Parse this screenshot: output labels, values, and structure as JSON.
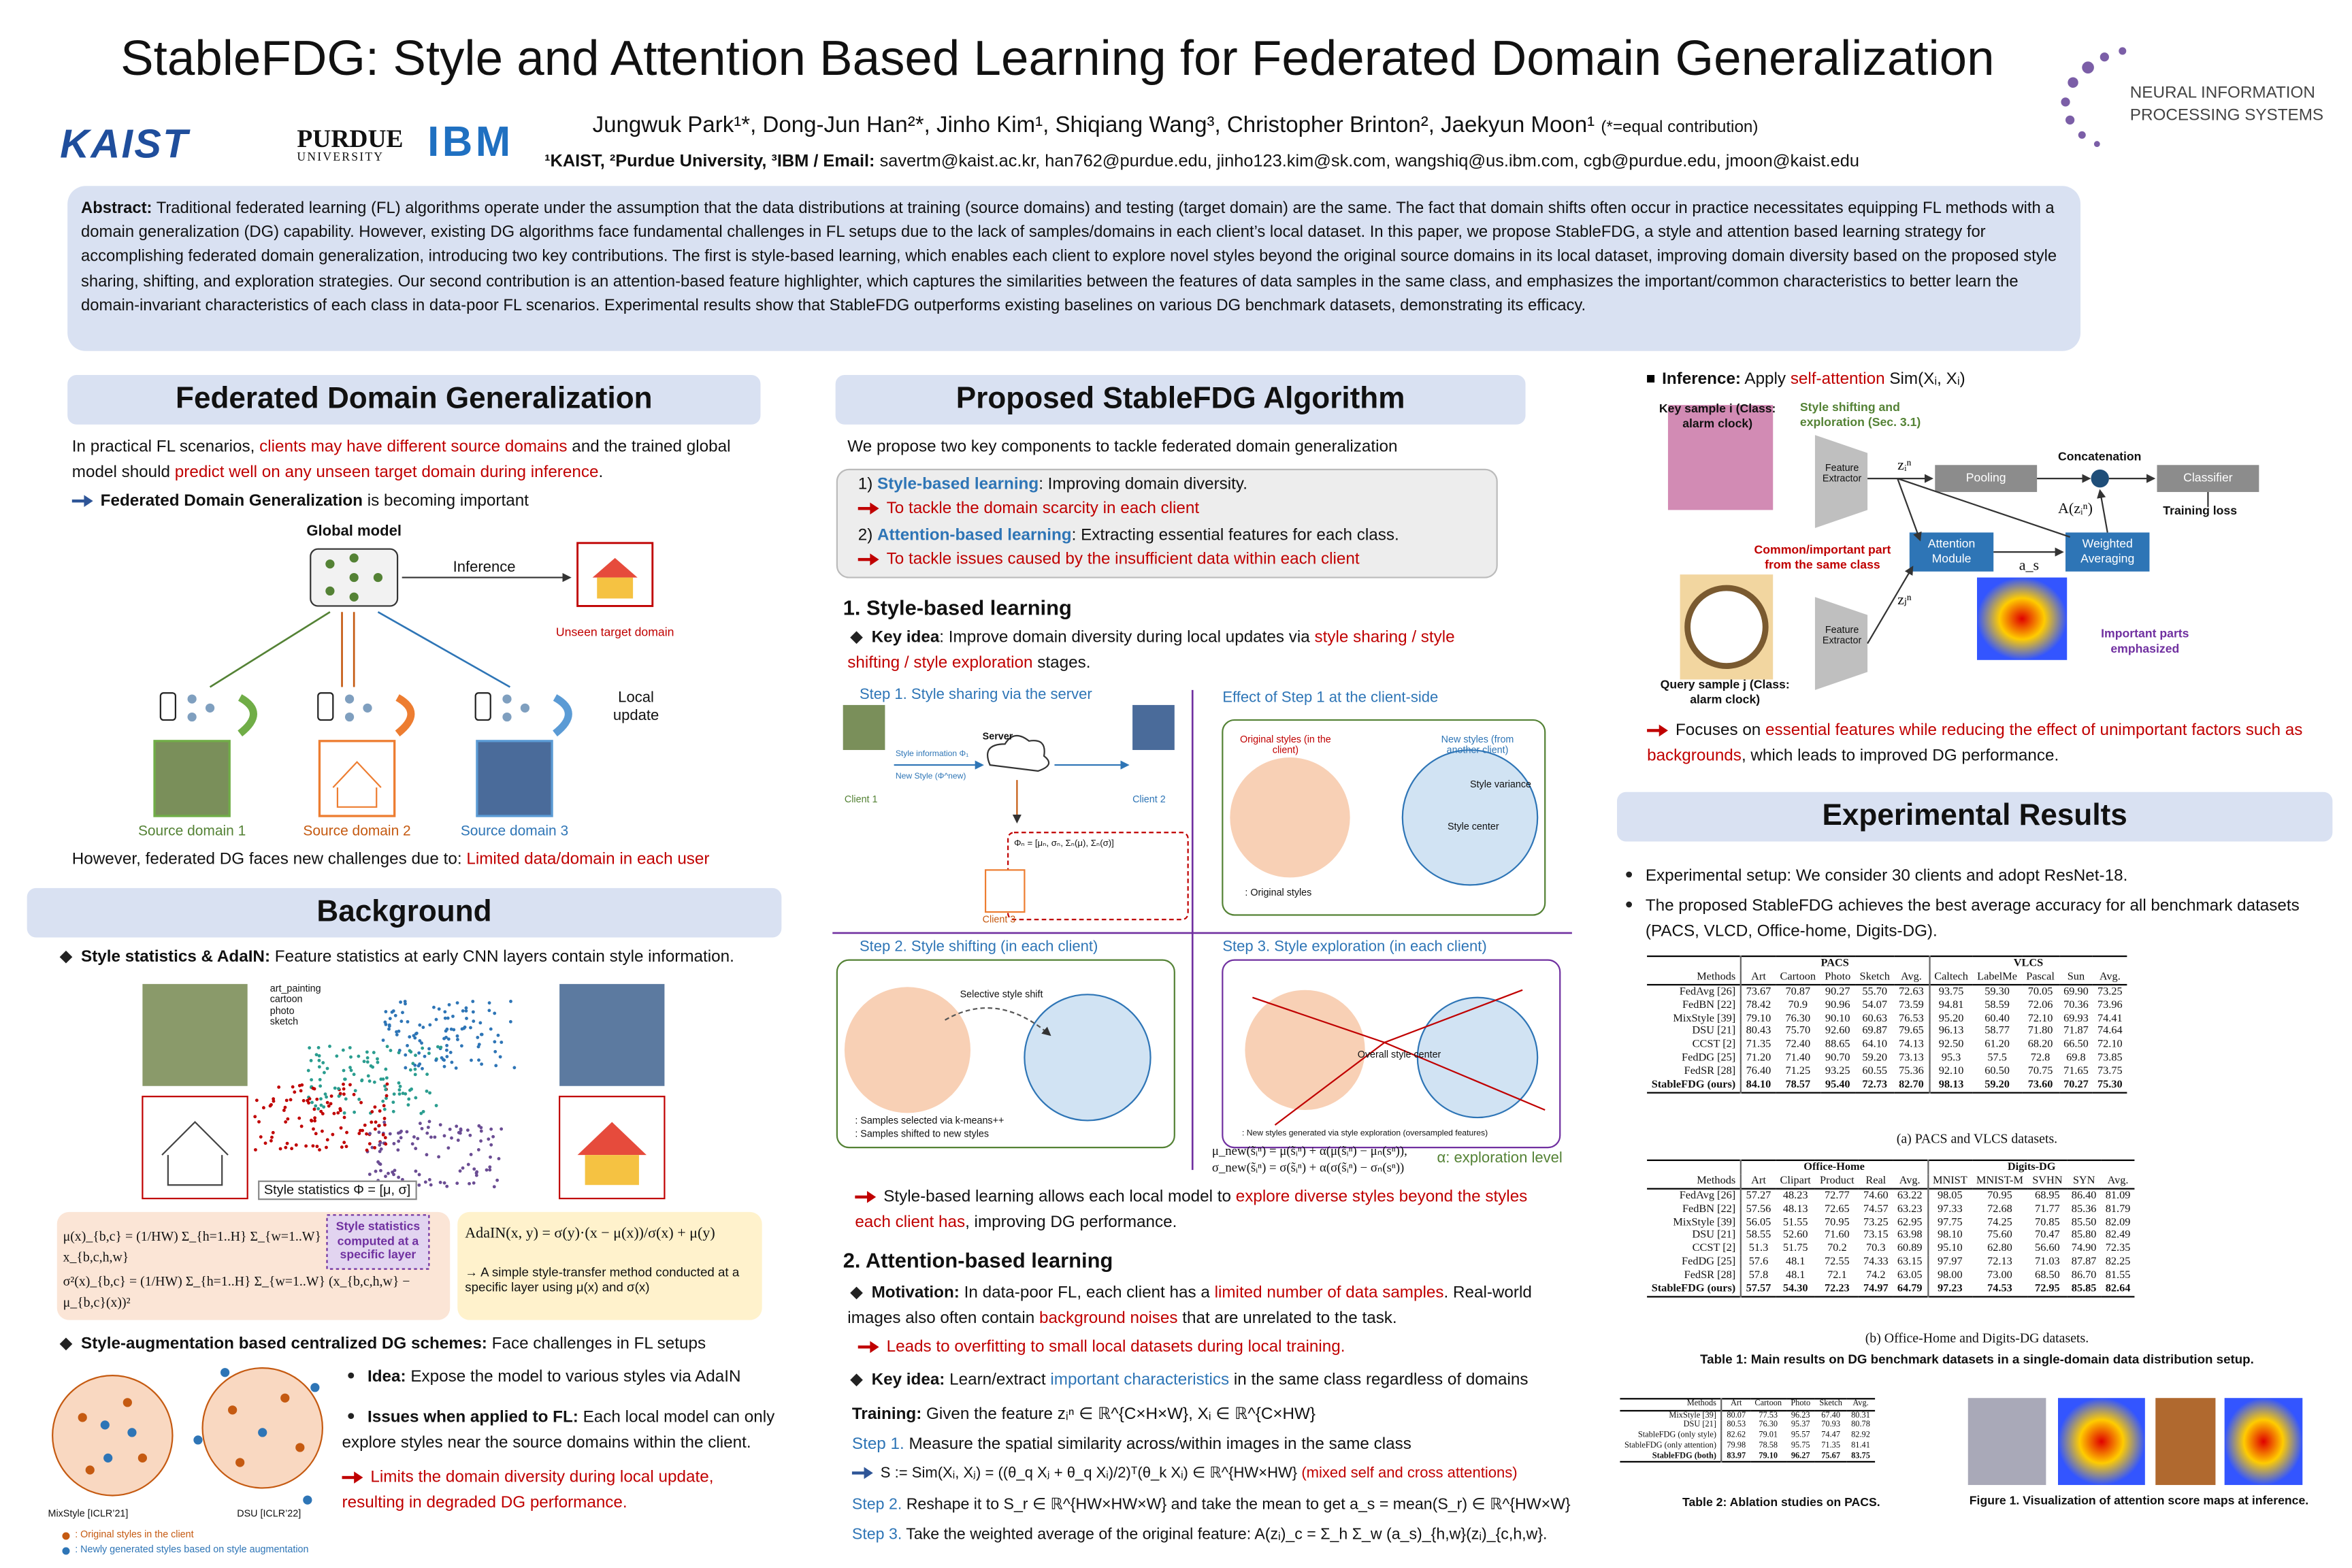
{
  "header": {
    "title": "StableFDG: Style and Attention Based Learning for Federated Domain Generalization",
    "authors": "Jungwuk Park¹*, Dong-Jun Han²*, Jinho Kim¹, Shiqiang Wang³, Christopher Brinton², Jaekyun Moon¹",
    "equal_note": "(*=equal contribution)",
    "affiliations": "¹KAIST, ²Purdue University, ³IBM / Email:",
    "emails": "savertm@kaist.ac.kr, han762@purdue.edu, jinho123.kim@sk.com, wangshiq@us.ibm.com, cgb@purdue.edu, jmoon@kaist.edu",
    "logos": [
      "KAIST",
      "PURDUE",
      "UNIVERSITY",
      "IBM",
      "NEURAL INFORMATION",
      "PROCESSING SYSTEMS"
    ]
  },
  "abstract": {
    "label": "Abstract:",
    "text": "Traditional federated learning (FL) algorithms operate under the assumption that the data distributions at training (source domains) and testing (target domain) are the same. The fact that domain shifts often occur in practice necessitates equipping FL methods with a domain generalization (DG) capability. However, existing DG algorithms face fundamental challenges in FL setups due to the lack of samples/domains in each client’s local dataset. In this paper, we propose StableFDG, a style and attention based learning strategy for accomplishing federated domain generalization, introducing two key contributions. The first is style-based learning, which enables each client to explore novel styles beyond the original source domains in its local dataset, improving domain diversity based on the proposed style sharing, shifting, and exploration strategies. Our second contribution is an attention-based feature highlighter, which captures the similarities between the features of data samples in the same class, and emphasizes the important/common characteristics to better learn the domain-invariant characteristics of each class in data-poor FL scenarios. Experimental results show that StableFDG outperforms existing baselines on various DG benchmark datasets, demonstrating its efficacy."
  },
  "fdg": {
    "heading": "Federated Domain Generalization",
    "intro": [
      "In practical FL scenarios, ",
      "clients may have different source domains",
      " and the trained global model should ",
      "predict well on any unseen target domain during inference",
      "."
    ],
    "point": [
      "Federated Domain Generalization",
      " is becoming important"
    ],
    "diagram": {
      "global_model": "Global model",
      "inference": "Inference",
      "unseen": "Unseen target domain",
      "local_update": "Local update",
      "sources": [
        "Source domain 1",
        "Source domain 2",
        "Source domain 3"
      ]
    },
    "challenge": [
      "However, federated DG faces new challenges due to: ",
      "Limited data/domain in each user"
    ]
  },
  "background": {
    "heading": "Background",
    "stats": [
      "Style statistics & AdaIN:",
      " Feature statistics at early CNN layers contain style information."
    ],
    "tsne_legend": [
      "art_painting",
      "cartoon",
      "photo",
      "sketch"
    ],
    "tsne_label": "Style statistics Φ = [μ, σ]",
    "mean_formula": "μ(x)_{b,c} = (1/HW) Σ_{h=1..H} Σ_{w=1..W} x_{b,c,h,w}",
    "var_formula": "σ²(x)_{b,c} = (1/HW) Σ_{h=1..H} Σ_{w=1..W} (x_{b,c,h,w} − μ_{b,c}(x))²",
    "stats_note": "Style statistics computed at a specific layer",
    "adain_formula": "AdaIN(x, y) = σ(y)·(x − μ(x))/σ(x) + μ(y)",
    "adain_note": "→ A simple style-transfer method conducted at a specific layer using μ(x) and σ(x)",
    "aug": [
      "Style-augmentation based centralized DG schemes:",
      " Face challenges in FL setups"
    ],
    "methods": [
      "MixStyle [ICLR’21]",
      "DSU [ICLR’22]"
    ],
    "legend": [
      ": Original styles in the client",
      ": Newly generated styles based on style augmentation"
    ],
    "idea": [
      "Idea:",
      " Expose the model to various styles via AdaIN"
    ],
    "issues": [
      "Issues when applied to FL:",
      " Each local model can only explore styles near the source domains within the client."
    ],
    "limit": "Limits the domain diversity during local update, resulting in degraded DG performance."
  },
  "algorithm": {
    "heading": "Proposed StableFDG Algorithm",
    "intro": "We propose two key components to tackle federated domain generalization",
    "c1": [
      "1) ",
      "Style-based learning",
      ": Improving domain diversity."
    ],
    "c1_goal": "To tackle the domain scarcity in each client",
    "c2": [
      "2) ",
      "Attention-based learning",
      ": Extracting essential features for each class."
    ],
    "c2_goal": "To tackle issues caused by the insufficient data within each client",
    "s1_heading": "1. Style-based learning",
    "s1_key": [
      "Key idea",
      ": Improve domain diversity during local updates via ",
      "style sharing / style shifting / style exploration",
      " stages."
    ],
    "fig": {
      "step1": "Step 1. Style sharing via the server",
      "effect": "Effect of Step 1 at the client-side",
      "step2": "Step 2. Style shifting (in each client)",
      "step3": "Step 3. Style exploration (in each client)",
      "server": "Server",
      "clients": [
        "Client 1",
        "Client 2",
        "Client 3"
      ],
      "style_info": "Style information Φ₁",
      "new_style": "New Style (Φ^new)",
      "phi": "Φₙ = [μₙ, σₙ, Σₙ(μ), Σₙ(σ)]",
      "orig": "Original styles (in the client)",
      "newst": "New styles (from another client)",
      "center": "Style center",
      "variance": "Style variance",
      "shift": "Selective style shift",
      "overall": "Overall style center",
      "orig_legend": ": Original styles",
      "kmeans": ": Samples selected via k-means++",
      "shifted": ": Samples shifted to new styles",
      "explored": ": New styles generated via style exploration (oversampled features)",
      "mu_new": "μ_new(s̃ᵢⁿ) = μ(s̃ᵢⁿ) + α(μ(s̃ᵢⁿ) − μₙ(sⁿ)),",
      "sigma_new": "σ_new(s̃ᵢⁿ) = σ(s̃ᵢⁿ) + α(σ(s̃ᵢⁿ) − σₙ(sⁿ))",
      "alpha": "α: exploration level"
    },
    "s1_result": [
      "Style-based learning allows each local model to ",
      "explore diverse styles beyond the styles each client has",
      ", improving DG performance."
    ],
    "s2_heading": "2. Attention-based learning",
    "motivation": [
      "Motivation:",
      " In data-poor FL, each client has a ",
      "limited number of data samples",
      ". Real-world images also often contain ",
      "background noises",
      " that are unrelated to the task."
    ],
    "overfit": "Leads to overfitting to small local datasets during local training.",
    "s2_key": [
      "Key idea:",
      " Learn/extract ",
      "important characteristics",
      " in the same class regardless of domains"
    ],
    "training": [
      "Training:",
      " Given the feature zᵢⁿ ∈ ℝ^{C×H×W}, Xᵢ ∈ ℝ^{C×HW}"
    ],
    "step1": [
      "Step 1.",
      " Measure the spatial similarity across/within images in the same class"
    ],
    "sim": [
      "S := Sim(Xᵢ, Xⱼ) = ((θ_q Xⱼ + θ_q Xᵢ)/2)ᵀ(θ_k Xᵢ) ∈ ℝ^{HW×HW}",
      "(mixed self and cross attentions)"
    ],
    "step2": [
      "Step 2.",
      " Reshape it to S_r ∈ ℝ^{HW×HW×W} and take the mean to get a_s = mean(S_r) ∈ ℝ^{HW×W}"
    ],
    "step3": [
      "Step 3.",
      " Take the weighted average of the original feature: A(zᵢ)_c = Σ_h Σ_w (a_s)_{h,w}(zᵢ)_{c,h,w}."
    ]
  },
  "inference": {
    "title": [
      "Inference:",
      " Apply ",
      "self-attention",
      " Sim(Xᵢ, Xᵢ)"
    ],
    "key": "Key sample i (Class: alarm clock)",
    "shift": "Style shifting and exploration (Sec. 3.1)",
    "extractor": "Feature Extractor",
    "pooling": "Pooling",
    "concat": "Concatenation",
    "classifier": "Classifier",
    "loss": "Training loss",
    "attention": "Attention Module",
    "weighted": "Weighted Averaging",
    "common": "Common/important part from the same class",
    "query": "Query sample j (Class: alarm clock)",
    "important": "Important parts emphasized",
    "zi": "zᵢⁿ",
    "zj": "zⱼⁿ",
    "az": "A(zᵢⁿ)",
    "as": "a_s",
    "focus": [
      "Focuses on ",
      "essential features while reducing the effect of unimportant factors such as backgrounds",
      ", which leads to improved DG performance."
    ]
  },
  "results": {
    "heading": "Experimental Results",
    "bullets": [
      "Experimental setup: We consider 30 clients and adopt ResNet-18.",
      "The proposed StableFDG achieves the best average accuracy for all benchmark datasets (PACS, VLCD, Office-home, Digits-DG)."
    ],
    "table1a": {
      "groups": [
        "PACS",
        "VLCS"
      ],
      "columns": [
        "Methods",
        "Art",
        "Cartoon",
        "Photo",
        "Sketch",
        "Avg.",
        "Caltech",
        "LabelMe",
        "Pascal",
        "Sun",
        "Avg."
      ],
      "rows": [
        [
          "FedAvg [26]",
          "73.67",
          "70.87",
          "90.27",
          "55.70",
          "72.63",
          "93.75",
          "59.30",
          "70.05",
          "69.90",
          "73.25"
        ],
        [
          "FedBN [22]",
          "78.42",
          "70.9",
          "90.96",
          "54.07",
          "73.59",
          "94.81",
          "58.59",
          "72.06",
          "70.36",
          "73.96"
        ],
        [
          "MixStyle [39]",
          "79.10",
          "76.30",
          "90.10",
          "60.63",
          "76.53",
          "95.20",
          "60.40",
          "72.10",
          "69.93",
          "74.41"
        ],
        [
          "DSU [21]",
          "80.43",
          "75.70",
          "92.60",
          "69.87",
          "79.65",
          "96.13",
          "58.77",
          "71.80",
          "71.87",
          "74.64"
        ],
        [
          "CCST [2]",
          "71.35",
          "72.40",
          "88.65",
          "64.10",
          "74.13",
          "92.50",
          "61.20",
          "68.20",
          "66.50",
          "72.10"
        ],
        [
          "FedDG [25]",
          "71.20",
          "71.40",
          "90.70",
          "59.20",
          "73.13",
          "95.3",
          "57.5",
          "72.8",
          "69.8",
          "73.85"
        ],
        [
          "FedSR [28]",
          "76.40",
          "71.25",
          "93.25",
          "60.55",
          "75.36",
          "92.10",
          "60.50",
          "70.75",
          "71.65",
          "73.75"
        ],
        [
          "StableFDG (ours)",
          "84.10",
          "78.57",
          "95.40",
          "72.73",
          "82.70",
          "98.13",
          "59.20",
          "73.60",
          "70.27",
          "75.30"
        ]
      ],
      "caption": "(a) PACS and VLCS datasets."
    },
    "table1b": {
      "groups": [
        "Office-Home",
        "Digits-DG"
      ],
      "columns": [
        "Methods",
        "Art",
        "Clipart",
        "Product",
        "Real",
        "Avg.",
        "MNIST",
        "MNIST-M",
        "SVHN",
        "SYN",
        "Avg."
      ],
      "rows": [
        [
          "FedAvg [26]",
          "57.27",
          "48.23",
          "72.77",
          "74.60",
          "63.22",
          "98.05",
          "70.95",
          "68.95",
          "86.40",
          "81.09"
        ],
        [
          "FedBN [22]",
          "57.56",
          "48.13",
          "72.65",
          "74.57",
          "63.23",
          "97.33",
          "72.68",
          "71.77",
          "85.36",
          "81.79"
        ],
        [
          "MixStyle [39]",
          "56.05",
          "51.55",
          "70.95",
          "73.25",
          "62.95",
          "97.75",
          "74.25",
          "70.85",
          "85.50",
          "82.09"
        ],
        [
          "DSU [21]",
          "58.55",
          "52.60",
          "71.60",
          "73.15",
          "63.98",
          "98.10",
          "75.60",
          "70.47",
          "85.80",
          "82.49"
        ],
        [
          "CCST [2]",
          "51.3",
          "51.75",
          "70.2",
          "70.3",
          "60.89",
          "95.10",
          "62.80",
          "56.60",
          "74.90",
          "72.35"
        ],
        [
          "FedDG [25]",
          "57.6",
          "48.1",
          "72.55",
          "74.33",
          "63.15",
          "97.97",
          "72.13",
          "71.03",
          "87.87",
          "82.25"
        ],
        [
          "FedSR [28]",
          "57.8",
          "48.1",
          "72.1",
          "74.2",
          "63.05",
          "98.00",
          "73.00",
          "68.50",
          "86.70",
          "81.55"
        ],
        [
          "StableFDG (ours)",
          "57.57",
          "54.30",
          "72.23",
          "74.97",
          "64.79",
          "97.23",
          "74.53",
          "72.95",
          "85.85",
          "82.64"
        ]
      ],
      "caption": "(b) Office-Home and Digits-DG datasets."
    },
    "table1_caption": "Table 1: Main results on DG benchmark datasets in a single-domain data distribution setup.",
    "table2": {
      "columns": [
        "Methods",
        "Art",
        "Cartoon",
        "Photo",
        "Sketch",
        "Avg."
      ],
      "rows": [
        [
          "MixStyle [39]",
          "80.07",
          "77.53",
          "96.23",
          "67.40",
          "80.31"
        ],
        [
          "DSU [21]",
          "80.53",
          "76.30",
          "95.37",
          "70.93",
          "80.78"
        ],
        [
          "StableFDG (only style)",
          "82.62",
          "79.01",
          "95.57",
          "74.47",
          "82.92"
        ],
        [
          "StableFDG (only attention)",
          "79.98",
          "78.58",
          "95.75",
          "71.35",
          "81.41"
        ],
        [
          "StableFDG (both)",
          "83.97",
          "79.10",
          "96.27",
          "75.67",
          "83.75"
        ]
      ],
      "caption": "Table 2: Ablation studies on PACS."
    },
    "figure1_caption": "Figure 1. Visualization of attention score maps at inference."
  }
}
